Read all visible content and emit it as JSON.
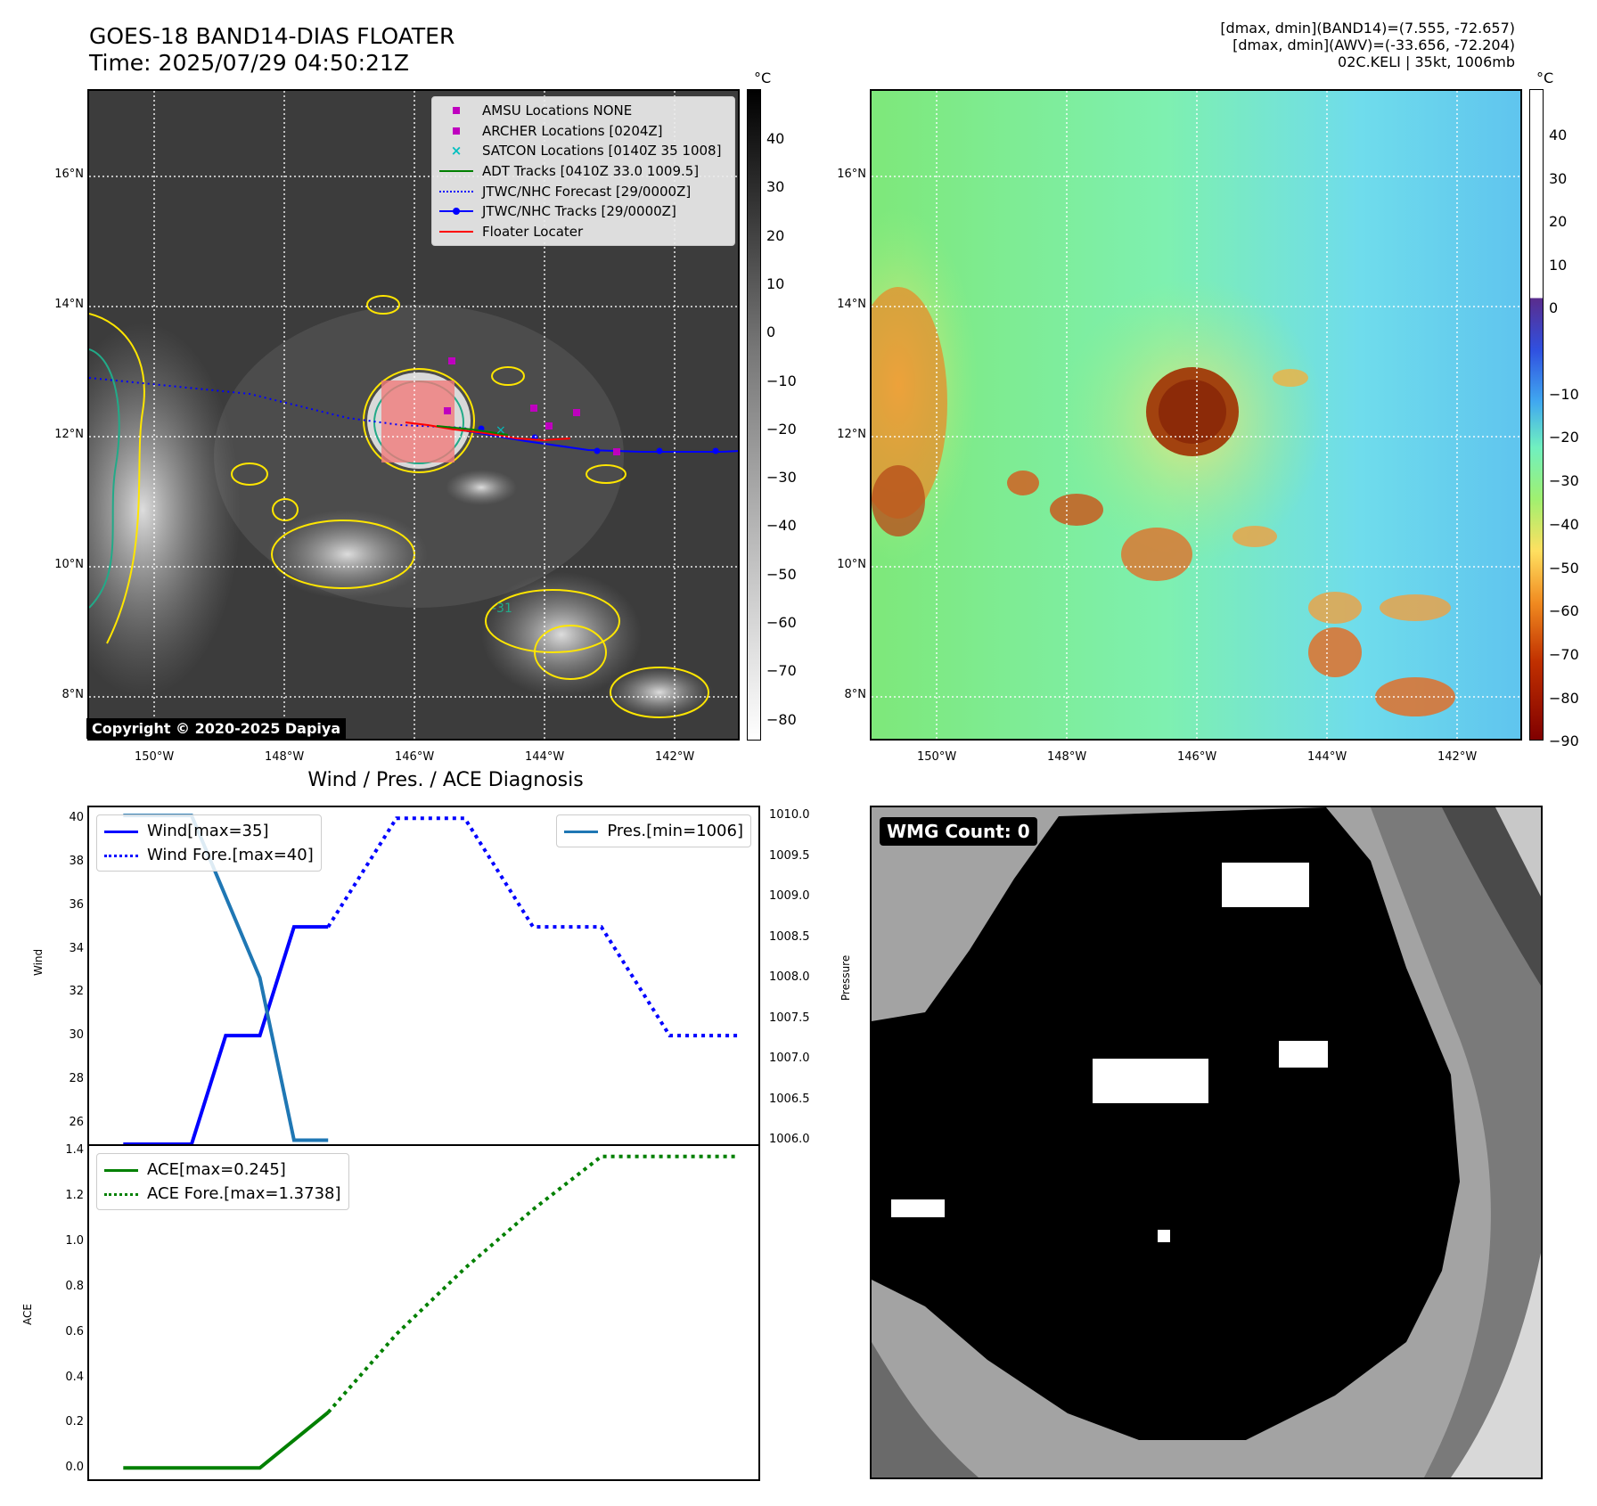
{
  "header": {
    "title_line1": "GOES-18 BAND14-DIAS FLOATER",
    "title_line2": "Time: 2025/07/29 04:50:21Z",
    "info_line1": "[dmax, dmin](BAND14)=(7.555, -72.657)",
    "info_line2": "[dmax, dmin](AWV)=(-33.656, -72.204)",
    "info_line3": "02C.KELI | 35kt, 1006mb"
  },
  "map_axes": {
    "lon_labels": [
      "150°W",
      "148°W",
      "146°W",
      "144°W",
      "142°W"
    ],
    "lat_labels": [
      "16°N",
      "14°N",
      "12°N",
      "10°N",
      "8°N"
    ]
  },
  "ir_panel": {
    "copyright": "Copyright © 2020-2025 Dapiya",
    "contour_label": "-31",
    "colorbar_unit": "°C",
    "colorbar_ticks": [
      "40",
      "30",
      "20",
      "10",
      "0",
      "−10",
      "−20",
      "−30",
      "−40",
      "−50",
      "−60",
      "−70",
      "−80"
    ],
    "legend": [
      {
        "label": "AMSU Locations NONE",
        "color": "#bf00bf",
        "marker": "square"
      },
      {
        "label": "ARCHER Locations [0204Z]",
        "color": "#bf00bf",
        "marker": "square"
      },
      {
        "label": "SATCON Locations [0140Z 35 1008]",
        "color": "#00bfbf",
        "marker": "x"
      },
      {
        "label": "ADT Tracks [0410Z 33.0 1009.5]",
        "color": "#008000",
        "marker": "line"
      },
      {
        "label": "JTWC/NHC Forecast [29/0000Z]",
        "color": "#0000ff",
        "marker": "dotted"
      },
      {
        "label": "JTWC/NHC Tracks [29/0000Z]",
        "color": "#0000ff",
        "marker": "line-dot"
      },
      {
        "label": "Floater Locater",
        "color": "#ff0000",
        "marker": "line"
      }
    ]
  },
  "awv_panel": {
    "colorbar_unit": "°C",
    "colorbar_ticks": [
      "40",
      "30",
      "20",
      "10",
      "0",
      "−10",
      "−20",
      "−30",
      "−40",
      "−50",
      "−60",
      "−70",
      "−80",
      "−90"
    ]
  },
  "diagnosis": {
    "title": "Wind / Pres. / ACE Diagnosis",
    "wmg_label": "WMG Count: 0"
  },
  "chart_data": [
    {
      "type": "line",
      "title": "Wind / Pres. / ACE Diagnosis",
      "ylabel": "Wind",
      "y2label": "Pressure",
      "ylim": [
        25.0,
        40.5
      ],
      "y2lim": [
        1005.95,
        1010.1
      ],
      "yticks": [
        26,
        28,
        30,
        32,
        34,
        36,
        38,
        40
      ],
      "y2ticks": [
        "1006.0",
        "1006.5",
        "1007.0",
        "1007.5",
        "1008.0",
        "1008.5",
        "1009.0",
        "1009.5",
        "1010.0"
      ],
      "xlim": [
        -0.5,
        9.3
      ],
      "series": [
        {
          "name": "Wind[max=35]",
          "axis": "left",
          "color": "#0000ff",
          "style": "solid",
          "x": [
            0,
            1,
            1.5,
            2,
            2.5,
            3
          ],
          "y": [
            25,
            25,
            30,
            30,
            35,
            35
          ]
        },
        {
          "name": "Wind Fore.[max=40]",
          "axis": "left",
          "color": "#0000ff",
          "style": "dotted",
          "x": [
            3,
            4,
            5,
            6,
            7,
            8,
            9
          ],
          "y": [
            35,
            40,
            40,
            35,
            35,
            30,
            30
          ]
        },
        {
          "name": "Pres.[min=1006]",
          "axis": "right",
          "color": "#1f77b4",
          "style": "solid",
          "x": [
            0,
            1,
            2,
            2.5,
            3
          ],
          "y": [
            1010,
            1010,
            1008,
            1006,
            1006
          ]
        }
      ]
    },
    {
      "type": "line",
      "ylabel": "ACE",
      "ylim": [
        -0.05,
        1.42
      ],
      "yticks": [
        "0.0",
        "0.2",
        "0.4",
        "0.6",
        "0.8",
        "1.0",
        "1.2",
        "1.4"
      ],
      "xlim": [
        -0.5,
        9.3
      ],
      "series": [
        {
          "name": "ACE[max=0.245]",
          "color": "#008000",
          "style": "solid",
          "x": [
            0,
            1,
            2,
            3
          ],
          "y": [
            0,
            0,
            0,
            0.245
          ]
        },
        {
          "name": "ACE Fore.[max=1.3738]",
          "color": "#008000",
          "style": "dotted",
          "x": [
            3,
            4,
            5,
            6,
            7,
            8,
            9
          ],
          "y": [
            0.245,
            0.59,
            0.88,
            1.14,
            1.3738,
            1.3738,
            1.3738
          ]
        }
      ]
    }
  ]
}
